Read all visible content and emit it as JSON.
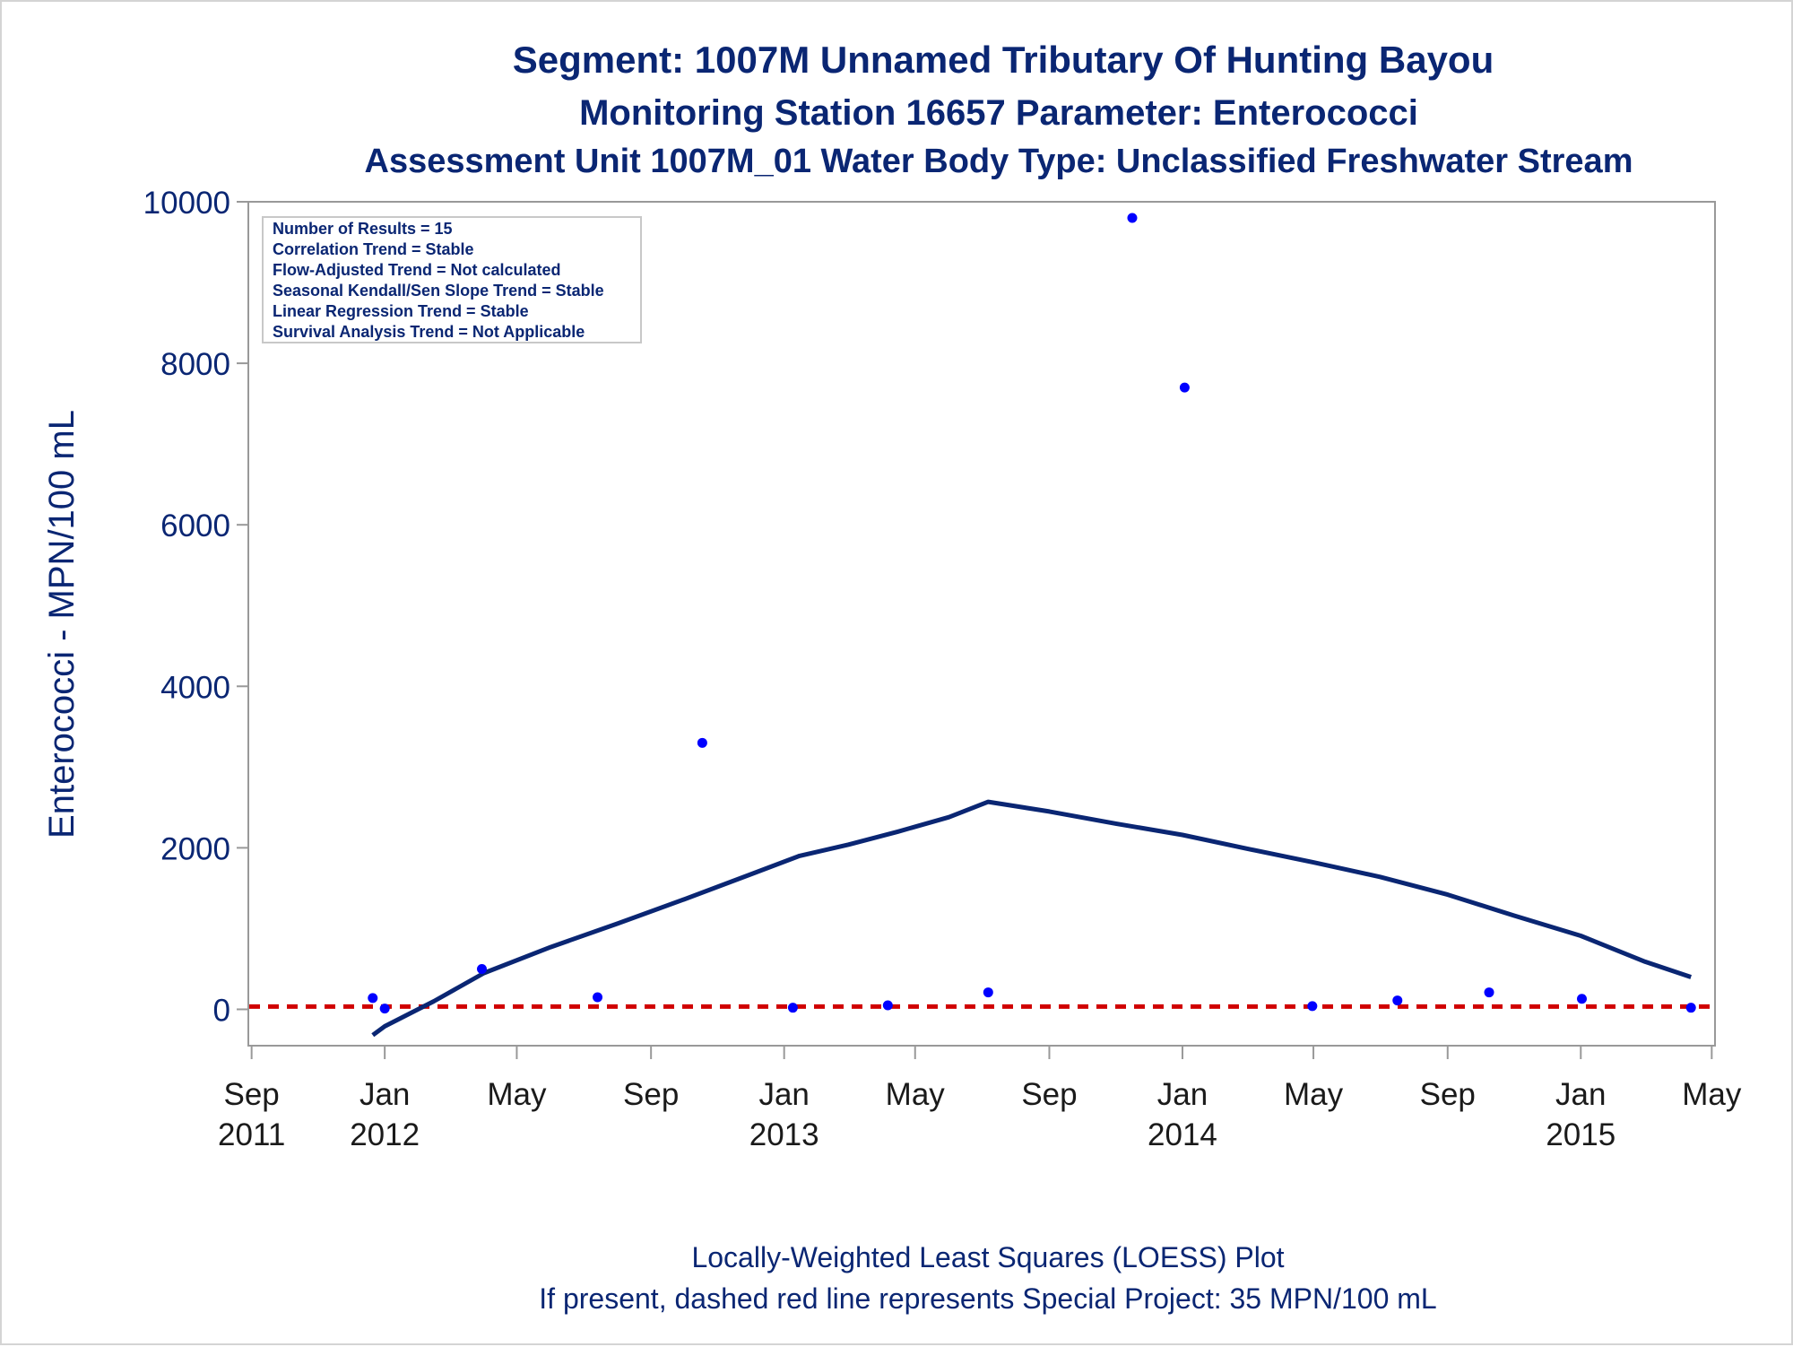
{
  "chart_data": {
    "type": "scatter",
    "title": "Segment: 1007M  Unnamed Tributary Of Hunting Bayou",
    "subtitle": "Monitoring Station 16657 Parameter: Enterococci",
    "subtitle2": "Assessment Unit 1007M_01   Water Body Type: Unclassified Freshwater Stream",
    "xlabel": "",
    "ylabel": "Enterococci - MPN/100 mL",
    "ylim": [
      -450,
      10000
    ],
    "xlim": [
      "2011-08-29",
      "2015-05-04"
    ],
    "yticks": [
      0,
      2000,
      4000,
      6000,
      8000,
      10000
    ],
    "xticks": [
      {
        "date": "2011-09-01",
        "label1": "Sep",
        "label2": "2011"
      },
      {
        "date": "2012-01-01",
        "label1": "Jan",
        "label2": "2012"
      },
      {
        "date": "2012-05-01",
        "label1": "May",
        "label2": ""
      },
      {
        "date": "2012-09-01",
        "label1": "Sep",
        "label2": ""
      },
      {
        "date": "2013-01-01",
        "label1": "Jan",
        "label2": "2013"
      },
      {
        "date": "2013-05-01",
        "label1": "May",
        "label2": ""
      },
      {
        "date": "2013-09-01",
        "label1": "Sep",
        "label2": ""
      },
      {
        "date": "2014-01-01",
        "label1": "Jan",
        "label2": "2014"
      },
      {
        "date": "2014-05-01",
        "label1": "May",
        "label2": ""
      },
      {
        "date": "2014-09-01",
        "label1": "Sep",
        "label2": ""
      },
      {
        "date": "2015-01-01",
        "label1": "Jan",
        "label2": "2015"
      },
      {
        "date": "2015-05-01",
        "label1": "May",
        "label2": ""
      }
    ],
    "points": [
      {
        "x": "2011-12-21",
        "y": 140
      },
      {
        "x": "2012-01-01",
        "y": 10
      },
      {
        "x": "2012-03-30",
        "y": 500
      },
      {
        "x": "2012-07-14",
        "y": 150
      },
      {
        "x": "2012-10-18",
        "y": 3300
      },
      {
        "x": "2013-01-09",
        "y": 20
      },
      {
        "x": "2013-04-06",
        "y": 50
      },
      {
        "x": "2013-07-07",
        "y": 210
      },
      {
        "x": "2013-11-16",
        "y": 9800
      },
      {
        "x": "2014-01-03",
        "y": 7700
      },
      {
        "x": "2014-04-30",
        "y": 40
      },
      {
        "x": "2014-07-17",
        "y": 110
      },
      {
        "x": "2014-10-09",
        "y": 210
      },
      {
        "x": "2015-01-02",
        "y": 130
      },
      {
        "x": "2015-04-12",
        "y": 20
      }
    ],
    "loess": [
      {
        "x": "2011-12-21",
        "y": -320
      },
      {
        "x": "2012-01-01",
        "y": -210
      },
      {
        "x": "2012-02-15",
        "y": 100
      },
      {
        "x": "2012-04-01",
        "y": 450
      },
      {
        "x": "2012-06-01",
        "y": 770
      },
      {
        "x": "2012-08-01",
        "y": 1060
      },
      {
        "x": "2012-10-01",
        "y": 1360
      },
      {
        "x": "2012-12-01",
        "y": 1670
      },
      {
        "x": "2013-01-15",
        "y": 1900
      },
      {
        "x": "2013-03-01",
        "y": 2040
      },
      {
        "x": "2013-04-15",
        "y": 2200
      },
      {
        "x": "2013-06-01",
        "y": 2380
      },
      {
        "x": "2013-07-07",
        "y": 2570
      },
      {
        "x": "2013-09-01",
        "y": 2450
      },
      {
        "x": "2013-11-01",
        "y": 2300
      },
      {
        "x": "2014-01-01",
        "y": 2160
      },
      {
        "x": "2014-03-01",
        "y": 1990
      },
      {
        "x": "2014-05-01",
        "y": 1820
      },
      {
        "x": "2014-07-01",
        "y": 1640
      },
      {
        "x": "2014-09-01",
        "y": 1420
      },
      {
        "x": "2014-11-01",
        "y": 1160
      },
      {
        "x": "2015-01-01",
        "y": 910
      },
      {
        "x": "2015-03-01",
        "y": 590
      },
      {
        "x": "2015-04-12",
        "y": 400
      }
    ],
    "reference_line": {
      "y": 35,
      "color": "#d00000",
      "style": "dashed"
    },
    "colors": {
      "points": "#0000ff",
      "loess": "#0a2673",
      "text": "#0a2673",
      "axis": "#999999"
    },
    "grid": false,
    "legend_position": "top-left",
    "stats": [
      "Number of Results = 15",
      "Correlation Trend = Stable",
      "Flow-Adjusted Trend = Not calculated",
      "Seasonal Kendall/Sen Slope Trend = Stable",
      "Linear Regression Trend = Stable",
      "Survival Analysis Trend = Not Applicable"
    ]
  },
  "footnote": {
    "line1": "Locally-Weighted Least Squares (LOESS) Plot",
    "line2": "If present, dashed red line represents Special Project: 35 MPN/100 mL"
  }
}
